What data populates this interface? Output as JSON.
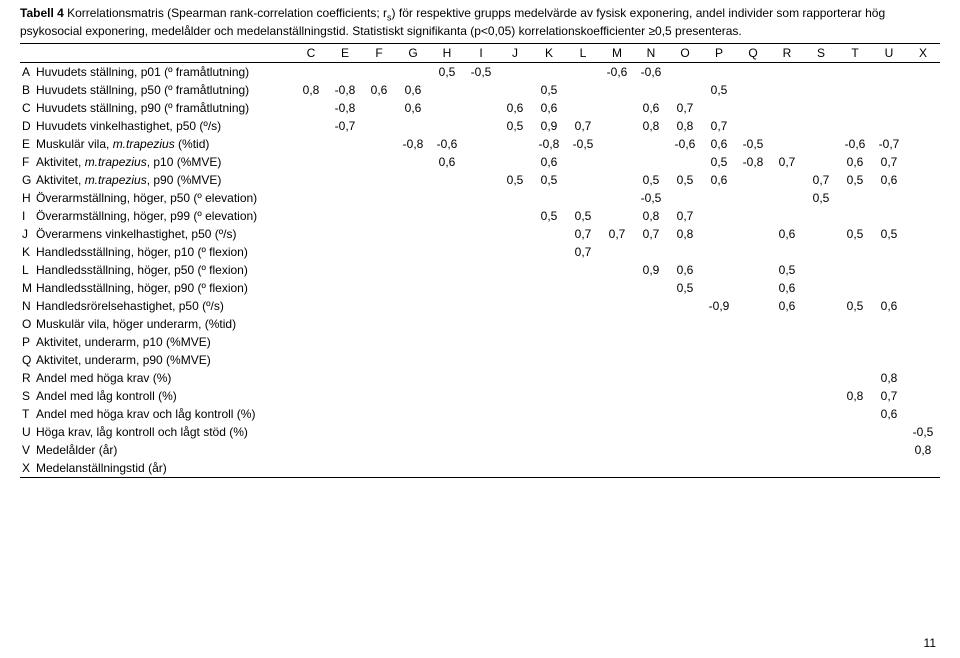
{
  "caption": {
    "label": "Tabell 4",
    "line1a": "  Korrelationsmatris (Spearman rank-correlation coefficients; r",
    "line1b": ") för respektive grupps medelvärde av fysisk exponering, andel individer som rapporterar hög psykosocial exponering, medelålder och medelanställningstid. Statistiskt signifikanta (p<0,05) korrelationskoefficienter ≥0,5 presenteras."
  },
  "columns": [
    "C",
    "E",
    "F",
    "G",
    "H",
    "I",
    "J",
    "K",
    "L",
    "M",
    "N",
    "O",
    "P",
    "Q",
    "R",
    "S",
    "T",
    "U",
    "X"
  ],
  "rows": [
    {
      "code": "A",
      "label": "Huvudets ställning, p01 (º framåtlutning)",
      "vals": {
        "H": "0,5",
        "I": "-0,5",
        "M": "-0,6",
        "N": "-0,6"
      }
    },
    {
      "code": "B",
      "label": "Huvudets ställning, p50 (º framåtlutning)",
      "vals": {
        "C": "0,8",
        "E": "-0,8",
        "F": "0,6",
        "G": "0,6",
        "K": "0,5",
        "P": "0,5"
      }
    },
    {
      "code": "C",
      "label": "Huvudets ställning, p90 (º framåtlutning)",
      "vals": {
        "E": "-0,8",
        "G": "0,6",
        "J": "0,6",
        "K": "0,6",
        "N": "0,6",
        "O": "0,7"
      }
    },
    {
      "code": "D",
      "label": "Huvudets vinkelhastighet, p50 (º/s)",
      "vals": {
        "E": "-0,7",
        "J": "0,5",
        "K": "0,9",
        "L": "0,7",
        "N": "0,8",
        "O": "0,8",
        "P": "0,7"
      }
    },
    {
      "code": "E",
      "label_html": "Muskulär vila, <span class=\"ital\">m.trapezius</span> (%tid)",
      "vals": {
        "G": "-0,8",
        "H": "-0,6",
        "K": "-0,8",
        "L": "-0,5",
        "O": "-0,6",
        "P": "0,6",
        "Q": "-0,5",
        "T": "-0,6",
        "U": "-0,7"
      }
    },
    {
      "code": "F",
      "label_html": "Aktivitet, <span class=\"ital\">m.trapezius</span>, p10 (%MVE)",
      "vals": {
        "H": "0,6",
        "K": "0,6",
        "P": "0,5",
        "Q": "-0,8",
        "R": "0,7",
        "T": "0,6",
        "U": "0,7"
      }
    },
    {
      "code": "G",
      "label_html": "Aktivitet, <span class=\"ital\">m.trapezius</span>, p90 (%MVE)",
      "vals": {
        "J": "0,5",
        "K": "0,5",
        "N": "0,5",
        "O": "0,5",
        "P": "0,6",
        "S": "0,7",
        "T": "0,5",
        "U": "0,6"
      }
    },
    {
      "code": "H",
      "label": "Överarmställning, höger, p50 (º elevation)",
      "vals": {
        "N": "-0,5",
        "S": "0,5"
      }
    },
    {
      "code": "I",
      "label": "Överarmställning, höger, p99 (º elevation)",
      "vals": {
        "K": "0,5",
        "L": "0,5",
        "N": "0,8",
        "O": "0,7"
      }
    },
    {
      "code": "J",
      "label": "Överarmens vinkelhastighet, p50 (º/s)",
      "vals": {
        "L": "0,7",
        "M": "0,7",
        "N": "0,7",
        "O": "0,8",
        "R": "0,6",
        "T": "0,5",
        "U": "0,5"
      }
    },
    {
      "code": "K",
      "label": "Handledsställning, höger, p10 (º flexion)",
      "vals": {
        "L": "0,7"
      }
    },
    {
      "code": "L",
      "label": "Handledsställning, höger, p50 (º flexion)",
      "vals": {
        "N": "0,9",
        "O": "0,6",
        "R": "0,5"
      }
    },
    {
      "code": "M",
      "label": "Handledsställning, höger, p90 (º flexion)",
      "vals": {
        "O": "0,5",
        "R": "0,6"
      }
    },
    {
      "code": "N",
      "label": "Handledsrörelsehastighet, p50 (º/s)",
      "vals": {
        "P": "-0,9",
        "R": "0,6",
        "T": "0,5",
        "U": "0,6"
      }
    },
    {
      "code": "O",
      "label": "Muskulär vila, höger underarm, (%tid)",
      "vals": {}
    },
    {
      "code": "P",
      "label": "Aktivitet, underarm, p10 (%MVE)",
      "vals": {}
    },
    {
      "code": "Q",
      "label": "Aktivitet, underarm, p90 (%MVE)",
      "vals": {}
    },
    {
      "code": "R",
      "label": "Andel med höga krav (%)",
      "vals": {
        "U": "0,8"
      }
    },
    {
      "code": "S",
      "label": "Andel med låg kontroll (%)",
      "vals": {
        "T": "0,8",
        "U": "0,7"
      }
    },
    {
      "code": "T",
      "label": "Andel med höga krav och låg kontroll (%)",
      "vals": {
        "U": "0,6"
      }
    },
    {
      "code": "U",
      "label": "Höga krav, låg kontroll och lågt stöd (%)",
      "vals": {
        "X": "-0,5"
      }
    },
    {
      "code": "V",
      "label": "Medelålder (år)",
      "vals": {
        "X": "0,8"
      }
    },
    {
      "code": "X",
      "label": "Medelanställningstid (år)",
      "vals": {}
    }
  ],
  "page_number": "11",
  "style": {
    "font_family": "Arial",
    "font_size_pt": 9,
    "text_color": "#000000",
    "background": "#ffffff",
    "border_color": "#000000"
  }
}
